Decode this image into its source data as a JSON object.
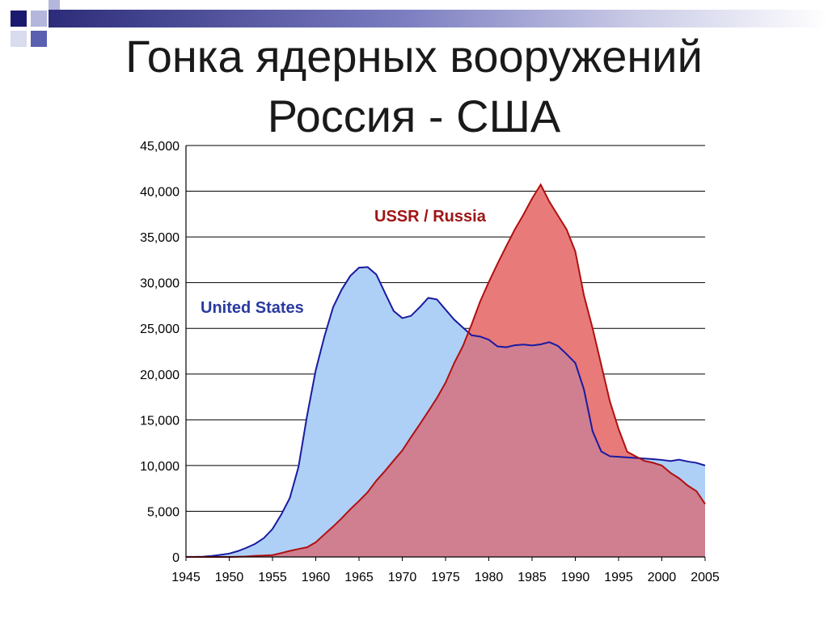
{
  "slide": {
    "title_line1": "Гонка ядерных вооружений",
    "title_line2": "Россия - США"
  },
  "colors": {
    "us_line": "#1a1aa0",
    "us_fill": "#aed0f7",
    "ussr_line": "#b01010",
    "ussr_fill": "#e87a7a",
    "overlap_fill": "#cf7f90",
    "us_label": "#2a3aa0",
    "ussr_label": "#a01515"
  },
  "chart_data": {
    "type": "area",
    "ylim": [
      0,
      45000
    ],
    "xlim": [
      1945,
      2005
    ],
    "y_ticks": [
      "0",
      "5,000",
      "10,000",
      "15,000",
      "20,000",
      "25,000",
      "30,000",
      "35,000",
      "40,000",
      "45,000"
    ],
    "x_ticks": [
      "1945",
      "1950",
      "1955",
      "1960",
      "1965",
      "1970",
      "1975",
      "1980",
      "1985",
      "1990",
      "1995",
      "2000",
      "2005"
    ],
    "grid": true,
    "legend": "inline labels",
    "series": [
      {
        "name": "United States",
        "x": [
          1945,
          1946,
          1947,
          1948,
          1949,
          1950,
          1951,
          1952,
          1953,
          1954,
          1955,
          1956,
          1957,
          1958,
          1959,
          1960,
          1961,
          1962,
          1963,
          1964,
          1965,
          1966,
          1967,
          1968,
          1969,
          1970,
          1971,
          1972,
          1973,
          1974,
          1975,
          1976,
          1977,
          1978,
          1979,
          1980,
          1981,
          1982,
          1983,
          1984,
          1985,
          1986,
          1987,
          1988,
          1989,
          1990,
          1991,
          1992,
          1993,
          1994,
          1995,
          1996,
          1997,
          1998,
          1999,
          2000,
          2001,
          2002,
          2003,
          2004,
          2005
        ],
        "values": [
          6,
          11,
          32,
          110,
          235,
          369,
          640,
          1005,
          1436,
          2063,
          3057,
          4618,
          6444,
          9822,
          15468,
          20434,
          24111,
          27297,
          29249,
          30751,
          31642,
          31700,
          30893,
          28884,
          26910,
          26119,
          26365,
          27296,
          28335,
          28170,
          27052,
          25956,
          25099,
          24243,
          24107,
          23764,
          23031,
          22937,
          23154,
          23228,
          23135,
          23254,
          23490,
          23077,
          22174,
          21211,
          18306,
          13731,
          11536,
          11012,
          10953,
          10886,
          10829,
          10763,
          10698,
          10615,
          10491,
          10640,
          10438,
          10295,
          10000
        ]
      },
      {
        "name": "USSR / Russia",
        "x": [
          1945,
          1946,
          1947,
          1948,
          1949,
          1950,
          1951,
          1952,
          1953,
          1954,
          1955,
          1956,
          1957,
          1958,
          1959,
          1960,
          1961,
          1962,
          1963,
          1964,
          1965,
          1966,
          1967,
          1968,
          1969,
          1970,
          1971,
          1972,
          1973,
          1974,
          1975,
          1976,
          1977,
          1978,
          1979,
          1980,
          1981,
          1982,
          1983,
          1984,
          1985,
          1986,
          1987,
          1988,
          1989,
          1990,
          1991,
          1992,
          1993,
          1994,
          1995,
          1996,
          1997,
          1998,
          1999,
          2000,
          2001,
          2002,
          2003,
          2004,
          2005
        ],
        "values": [
          0,
          0,
          0,
          0,
          1,
          5,
          25,
          50,
          120,
          150,
          200,
          426,
          660,
          869,
          1060,
          1605,
          2471,
          3322,
          4238,
          5221,
          6129,
          7089,
          8339,
          9399,
          10538,
          11643,
          13092,
          14478,
          15915,
          17385,
          19055,
          21205,
          23044,
          25393,
          27935,
          30062,
          32049,
          33952,
          35804,
          37431,
          39197,
          40723,
          38859,
          37333,
          35805,
          33417,
          28595,
          25000,
          21000,
          17000,
          14000,
          11500,
          11000,
          10500,
          10300,
          10000,
          9200,
          8600,
          7800,
          7200,
          5800
        ]
      }
    ],
    "annotations": [
      "United States",
      "USSR / Russia"
    ]
  }
}
